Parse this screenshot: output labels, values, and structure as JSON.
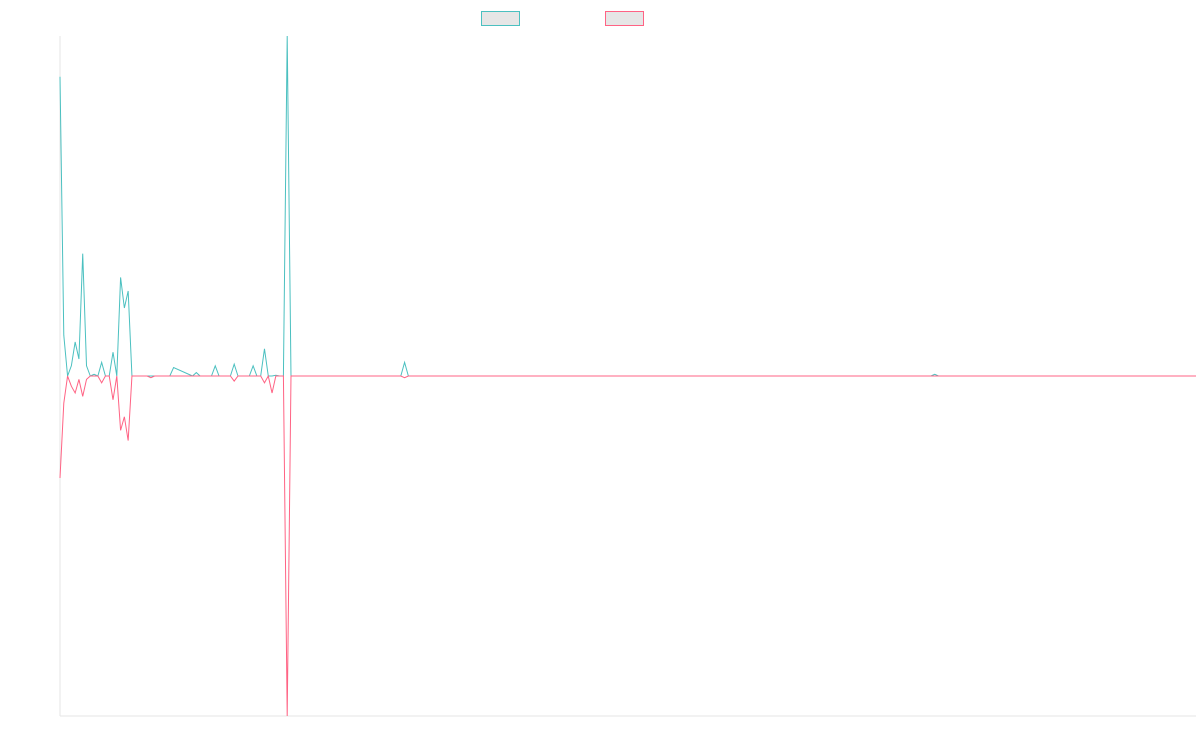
{
  "legend": {
    "items": [
      {
        "label": "",
        "color": "#4bc0c0"
      },
      {
        "label": "",
        "color": "#ff6384"
      }
    ]
  },
  "chart_data": {
    "type": "line",
    "title": "",
    "xlabel": "",
    "ylabel": "",
    "grid": false,
    "legend_position": "top",
    "ylim": [
      -100,
      100
    ],
    "x_count": 301,
    "series": [
      {
        "color": "#4bc0c0",
        "points": [
          [
            0,
            88
          ],
          [
            1,
            12
          ],
          [
            2,
            0
          ],
          [
            3,
            3
          ],
          [
            4,
            10
          ],
          [
            5,
            5
          ],
          [
            6,
            36
          ],
          [
            7,
            3
          ],
          [
            8,
            0
          ],
          [
            9,
            0.5
          ],
          [
            10,
            0
          ],
          [
            11,
            4
          ],
          [
            12,
            0
          ],
          [
            13,
            0
          ],
          [
            14,
            7
          ],
          [
            15,
            0
          ],
          [
            16,
            29
          ],
          [
            17,
            20
          ],
          [
            18,
            25
          ],
          [
            19,
            0
          ],
          [
            20,
            0
          ],
          [
            21,
            0
          ],
          [
            22,
            0
          ],
          [
            23,
            0
          ],
          [
            24,
            0
          ],
          [
            25,
            0
          ],
          [
            26,
            0
          ],
          [
            27,
            0
          ],
          [
            28,
            0
          ],
          [
            29,
            0
          ],
          [
            30,
            2.5
          ],
          [
            35,
            0
          ],
          [
            36,
            1
          ],
          [
            37,
            0
          ],
          [
            40,
            0
          ],
          [
            41,
            3
          ],
          [
            42,
            0
          ],
          [
            45,
            0
          ],
          [
            46,
            3.5
          ],
          [
            47,
            0
          ],
          [
            50,
            0
          ],
          [
            51,
            3
          ],
          [
            52,
            0
          ],
          [
            53,
            0
          ],
          [
            54,
            8
          ],
          [
            55,
            0
          ],
          [
            56,
            0
          ],
          [
            57,
            0.2
          ],
          [
            58,
            0
          ],
          [
            59,
            0
          ],
          [
            60,
            100
          ],
          [
            61,
            0
          ],
          [
            90,
            0
          ],
          [
            91,
            4
          ],
          [
            92,
            0
          ],
          [
            93,
            0
          ],
          [
            230,
            0
          ],
          [
            231,
            0.5
          ],
          [
            232,
            0
          ],
          [
            300,
            0
          ]
        ]
      },
      {
        "color": "#ff6384",
        "points": [
          [
            0,
            -30
          ],
          [
            1,
            -8
          ],
          [
            2,
            0
          ],
          [
            3,
            -3
          ],
          [
            4,
            -5
          ],
          [
            5,
            -1
          ],
          [
            6,
            -6
          ],
          [
            7,
            -1
          ],
          [
            8,
            0
          ],
          [
            9,
            0
          ],
          [
            10,
            0
          ],
          [
            11,
            -2
          ],
          [
            12,
            0
          ],
          [
            13,
            0
          ],
          [
            14,
            -7
          ],
          [
            15,
            0
          ],
          [
            16,
            -16
          ],
          [
            17,
            -12
          ],
          [
            18,
            -19
          ],
          [
            19,
            0
          ],
          [
            20,
            0
          ],
          [
            21,
            0
          ],
          [
            22,
            0
          ],
          [
            23,
            0
          ],
          [
            24,
            -0.5
          ],
          [
            25,
            0
          ],
          [
            26,
            0
          ],
          [
            27,
            0
          ],
          [
            28,
            0
          ],
          [
            29,
            0
          ],
          [
            30,
            0
          ],
          [
            35,
            0
          ],
          [
            36,
            0
          ],
          [
            37,
            0
          ],
          [
            45,
            0
          ],
          [
            46,
            -1.5
          ],
          [
            47,
            0
          ],
          [
            53,
            0
          ],
          [
            54,
            -2
          ],
          [
            55,
            0
          ],
          [
            56,
            -5
          ],
          [
            57,
            0
          ],
          [
            58,
            0
          ],
          [
            59,
            0
          ],
          [
            60,
            -100
          ],
          [
            61,
            0
          ],
          [
            90,
            0
          ],
          [
            91,
            -0.5
          ],
          [
            92,
            0
          ],
          [
            300,
            0
          ]
        ]
      }
    ]
  }
}
